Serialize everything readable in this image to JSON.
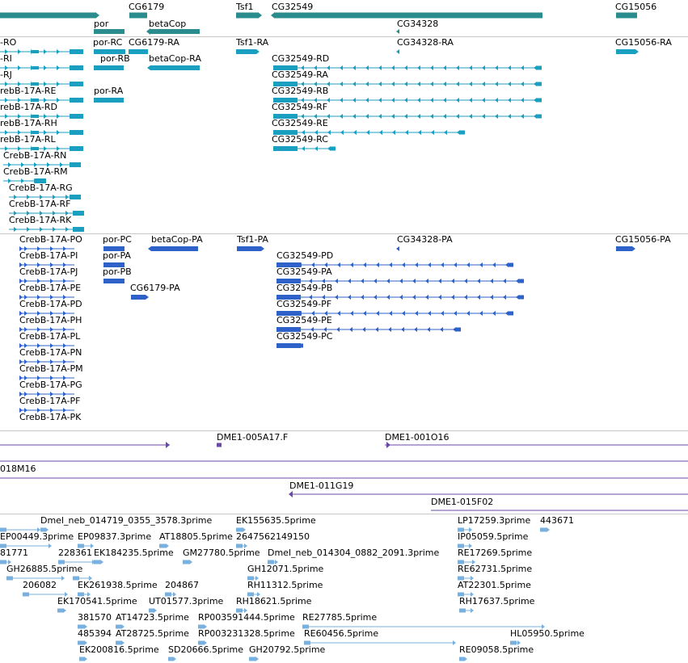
{
  "viewer": {
    "colors": {
      "gene": "#2a8c8c",
      "transcript_a": "#1b9fc0",
      "transcript_b": "#2e62c8",
      "clone": "#6a48a8",
      "est": "#7ab0de",
      "separator": "#c8c8c8"
    }
  },
  "tracks": {
    "genes": {
      "labels": [
        "CG6179",
        "Tsf1",
        "CG32549",
        "CG15056",
        "por",
        "betaCop",
        "CG34328"
      ]
    },
    "transcripts_a": {
      "labels": [
        "-RO",
        "por-RC",
        "CG6179-RA",
        "Tsf1-RA",
        "CG34328-RA",
        "CG15056-RA",
        "-RI",
        "por-RB",
        "betaCop-RA",
        "CG32549-RD",
        "-RJ",
        "CG32549-RA",
        "rebB-17A-RE",
        "por-RA",
        "CG32549-RB",
        "rebB-17A-RD",
        "CG32549-RF",
        "rebB-17A-RH",
        "CG32549-RE",
        "rebB-17A-RL",
        "CG32549-RC",
        "CrebB-17A-RN",
        "CrebB-17A-RM",
        "CrebB-17A-RG",
        "CrebB-17A-RF",
        "CrebB-17A-RK"
      ]
    },
    "transcripts_b": {
      "labels": [
        "CrebB-17A-PO",
        "por-PC",
        "betaCop-PA",
        "Tsf1-PA",
        "CG34328-PA",
        "CG15056-PA",
        "CrebB-17A-PI",
        "por-PA",
        "CG32549-PD",
        "CrebB-17A-PJ",
        "por-PB",
        "CG32549-PA",
        "CrebB-17A-PE",
        "CG6179-PA",
        "CG32549-PB",
        "CrebB-17A-PD",
        "CG32549-PF",
        "CrebB-17A-PH",
        "CG32549-PE",
        "CrebB-17A-PL",
        "CG32549-PC",
        "CrebB-17A-PN",
        "CrebB-17A-PM",
        "CrebB-17A-PG",
        "CrebB-17A-PF",
        "CrebB-17A-PK"
      ]
    },
    "clones": {
      "labels": [
        "DME1-005A17.F",
        "DME1-001O16",
        "018M16",
        "DME1-011G19",
        "DME1-015F02"
      ]
    },
    "ests": {
      "labels": [
        "Dmel_neb_014719_0355_3578.3prime",
        "EK155635.5prime",
        "LP17259.3prime",
        "443671",
        "EP00449.3prime",
        "EP09837.3prime",
        "AT18805.5prime",
        "2647562149150",
        "IP05059.5prime",
        "81771",
        "228361",
        "EK184235.5prime",
        "GM27780.5prime",
        "Dmel_neb_014304_0882_2091.3prime",
        "RE17269.5prime",
        "GH26885.5prime",
        "GH12071.5prime",
        "RE62731.5prime",
        "206082",
        "EK261938.5prime",
        "204867",
        "RH11312.5prime",
        "AT22301.5prime",
        "EK170541.5prime",
        "UT01577.3prime",
        "RH18621.5prime",
        "RH17637.5prime",
        "381570",
        "AT14723.5prime",
        "RP003591444.5prime",
        "RE27785.5prime",
        "485394",
        "AT28725.5prime",
        "RP003231328.5prime",
        "RE60456.5prime",
        "HL05950.5prime",
        "EK200816.5prime",
        "SD20666.5prime",
        "GH20792.5prime",
        "RE09058.5prime"
      ]
    }
  }
}
